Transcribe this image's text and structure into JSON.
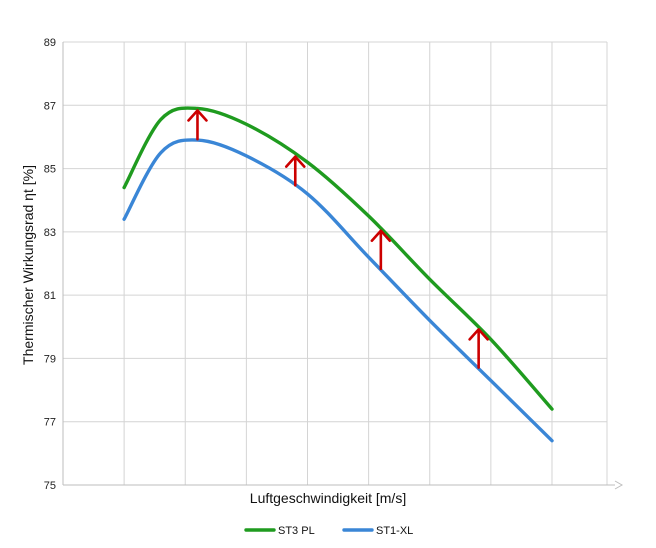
{
  "chart_data": {
    "type": "line",
    "title": "",
    "xlabel": "Luftgeschwindigkeit [m/s]",
    "ylabel": "Thermischer Wirkungsrad ηt [%]",
    "ylim": [
      75,
      89
    ],
    "y_ticks": [
      "75",
      "77",
      "79",
      "81",
      "83",
      "85",
      "87",
      "89"
    ],
    "x_tick_labels_shown": false,
    "grid": true,
    "legend_position": "bottom",
    "series": [
      {
        "name": "ST3 PL",
        "color": "#1f9b1f",
        "points": [
          [
            0.0,
            84.4
          ],
          [
            0.6,
            86.55
          ],
          [
            1.2,
            86.9
          ],
          [
            2.0,
            86.4
          ],
          [
            3.0,
            85.2
          ],
          [
            4.0,
            83.5
          ],
          [
            5.0,
            81.5
          ],
          [
            6.0,
            79.6
          ],
          [
            7.0,
            77.4
          ]
        ]
      },
      {
        "name": "ST1-XL",
        "color": "#3a86d6",
        "points": [
          [
            0.0,
            83.4
          ],
          [
            0.6,
            85.5
          ],
          [
            1.2,
            85.9
          ],
          [
            2.0,
            85.4
          ],
          [
            3.0,
            84.2
          ],
          [
            4.0,
            82.2
          ],
          [
            5.0,
            80.2
          ],
          [
            6.0,
            78.3
          ],
          [
            7.0,
            76.4
          ]
        ]
      }
    ],
    "annotations": {
      "arrow_color": "#cc0000",
      "up_arrows_at_x": [
        1.2,
        2.8,
        4.2,
        5.8
      ]
    }
  }
}
